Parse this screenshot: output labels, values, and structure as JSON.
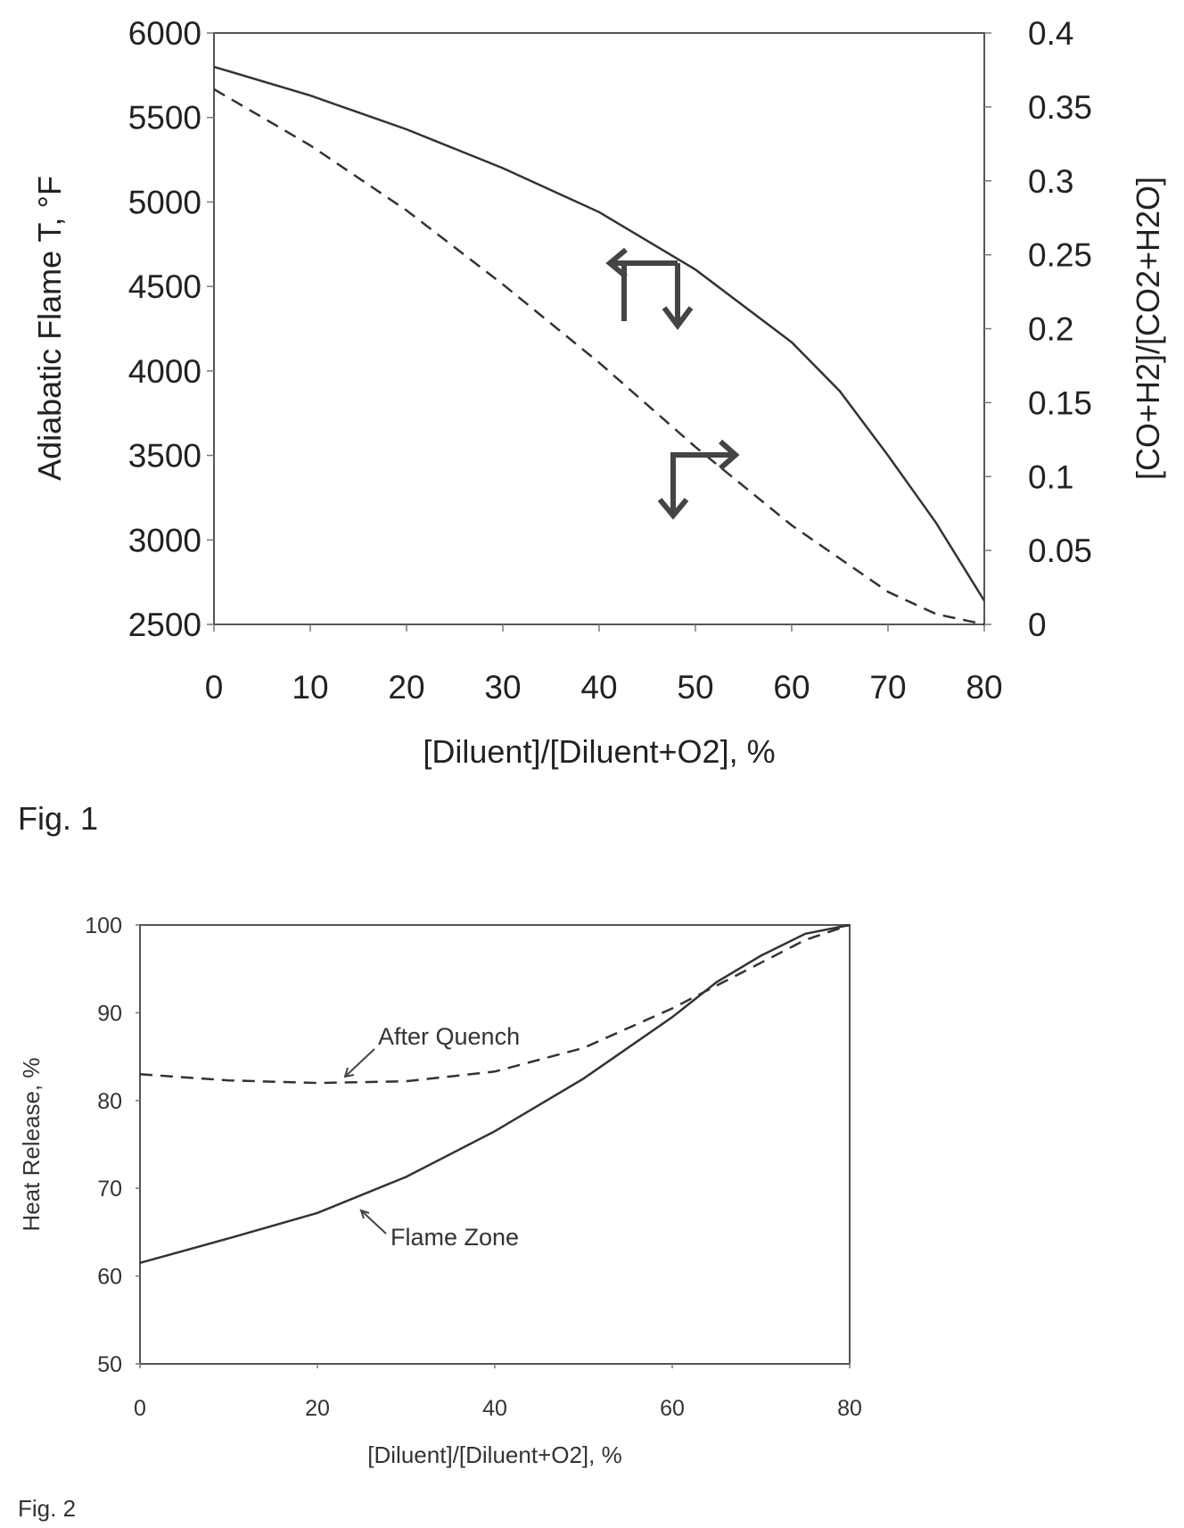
{
  "figure1": {
    "label": "Fig. 1",
    "chart_data": {
      "type": "line",
      "xlabel": "[Diluent]/[Diluent+O2], %",
      "ylabel_left": "Adiabatic Flame T, °F",
      "ylabel_right": "[CO+H2]/[CO2+H2O]",
      "xlim": [
        0,
        80
      ],
      "ylim_left": [
        2500,
        6000
      ],
      "ylim_right": [
        0,
        0.4
      ],
      "x_ticks": [
        "0",
        "10",
        "20",
        "30",
        "40",
        "50",
        "60",
        "70",
        "80"
      ],
      "y_left_ticks": [
        "6000",
        "5500",
        "5000",
        "4500",
        "4000",
        "3500",
        "3000",
        "2500"
      ],
      "y_right_ticks": [
        "0.4",
        "0.35",
        "0.3",
        "0.25",
        "0.2",
        "0.15",
        "0.1",
        "0.05",
        "0"
      ],
      "series": [
        {
          "axis": "left",
          "style": "solid",
          "x": [
            0,
            10,
            20,
            30,
            40,
            50,
            60,
            65,
            70,
            75,
            80
          ],
          "values": [
            5800,
            5630,
            5430,
            5200,
            4940,
            4600,
            4170,
            3880,
            3500,
            3100,
            2640
          ]
        },
        {
          "axis": "right",
          "style": "dashed",
          "x": [
            0,
            10,
            20,
            30,
            40,
            50,
            60,
            70,
            75,
            80
          ],
          "values": [
            0.362,
            0.324,
            0.28,
            0.23,
            0.177,
            0.12,
            0.067,
            0.022,
            0.007,
            0.0
          ]
        }
      ],
      "grid": false,
      "legend": "none",
      "annotations": [
        "arrow to left axis on solid curve",
        "arrow to right axis on dashed curve"
      ]
    }
  },
  "figure2": {
    "label": "Fig. 2",
    "chart_data": {
      "type": "line",
      "xlabel": "[Diluent]/[Diluent+O2], %",
      "ylabel": "Heat Release, %",
      "xlim": [
        0,
        80
      ],
      "ylim": [
        50,
        100
      ],
      "x_ticks": [
        "0",
        "20",
        "40",
        "60",
        "80"
      ],
      "y_ticks": [
        "100",
        "90",
        "80",
        "70",
        "60",
        "50"
      ],
      "series": [
        {
          "name": "After Quench",
          "style": "dashed",
          "x": [
            0,
            10,
            20,
            30,
            40,
            50,
            60,
            70,
            75,
            80
          ],
          "values": [
            83,
            82.3,
            82,
            82.2,
            83.3,
            86,
            90.5,
            95.7,
            98.3,
            100
          ]
        },
        {
          "name": "Flame Zone",
          "style": "solid",
          "x": [
            0,
            10,
            20,
            30,
            40,
            50,
            60,
            65,
            70,
            75,
            80
          ],
          "values": [
            61.5,
            64.3,
            67.2,
            71.3,
            76.5,
            82.5,
            89.5,
            93.5,
            96.5,
            99,
            100
          ]
        }
      ],
      "annotations": [
        "After Quench",
        "Flame Zone"
      ],
      "grid": false,
      "legend": "none"
    }
  }
}
